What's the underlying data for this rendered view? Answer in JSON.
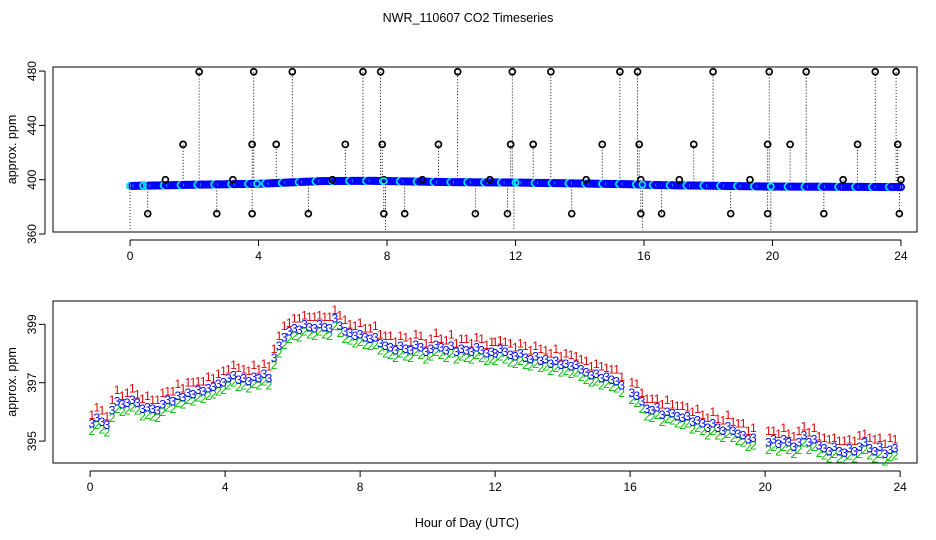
{
  "chart_data": [
    {
      "type": "scatter",
      "title": "NWR_110607  CO2 Timeseries",
      "xlabel": "",
      "ylabel": "approx. ppm",
      "xlim": [
        -2.4,
        24.5
      ],
      "ylim": [
        361.5,
        483
      ],
      "xticks": [
        0,
        4,
        8,
        12,
        16,
        20,
        24
      ],
      "yticks": [
        360,
        400,
        440,
        480
      ],
      "baseline": [
        [
          0.0,
          395.4
        ],
        [
          2.0,
          396.3
        ],
        [
          4.0,
          397.0
        ],
        [
          6.0,
          399.0
        ],
        [
          7.5,
          399.2
        ],
        [
          10.0,
          398.2
        ],
        [
          12.0,
          397.9
        ],
        [
          15.5,
          396.7
        ],
        [
          16.5,
          396.0
        ],
        [
          18.0,
          395.6
        ],
        [
          19.8,
          395.0
        ],
        [
          20.5,
          394.9
        ],
        [
          24.0,
          394.6
        ]
      ],
      "series": [
        {
          "name": "blue trace",
          "color": "#0000ff"
        },
        {
          "name": "cyan markers",
          "color": "#00e5ee"
        }
      ],
      "spikes_high": [
        2.15,
        3.85,
        5.05,
        7.25,
        7.8,
        10.2,
        11.9,
        13.1,
        15.25,
        15.8,
        18.15,
        19.9,
        21.05,
        23.2,
        23.85
      ],
      "spikes_mid": [
        1.65,
        3.8,
        4.55,
        6.7,
        7.85,
        9.6,
        11.85,
        12.55,
        14.7,
        15.85,
        17.55,
        19.85,
        20.55,
        22.65,
        23.9
      ],
      "spikes_low": [
        0.55,
        2.7,
        3.8,
        5.55,
        7.9,
        8.55,
        10.75,
        11.75,
        13.75,
        15.9,
        16.55,
        18.7,
        19.85,
        21.6,
        23.95
      ],
      "spikes_near": [
        1.1,
        3.2,
        6.3,
        7.9,
        9.1,
        11.2,
        14.2,
        15.9,
        17.1,
        19.3,
        22.2,
        24.0
      ]
    },
    {
      "type": "scatter",
      "title": "",
      "xlabel": "Hour of Day (UTC)",
      "ylabel": "approx. ppm",
      "xlim": [
        -1.1,
        24.5
      ],
      "ylim": [
        394.25,
        399.8
      ],
      "xticks": [
        0,
        4,
        8,
        12,
        16,
        20,
        24
      ],
      "yticks": [
        395,
        397,
        399
      ],
      "series": [
        {
          "name": "1",
          "symbol": "1",
          "color": "#dd0000",
          "offset": 0.35
        },
        {
          "name": "2",
          "symbol": "2",
          "color": "#00bb00",
          "offset": -0.2
        },
        {
          "name": "3",
          "symbol": "3",
          "color": "#0000ff",
          "offset": 0.05
        }
      ],
      "points": [
        [
          0.05,
          395.55
        ],
        [
          0.2,
          395.75
        ],
        [
          0.35,
          395.6
        ],
        [
          0.5,
          395.5
        ],
        [
          0.65,
          396.0
        ],
        [
          0.8,
          396.3
        ],
        [
          0.95,
          396.2
        ],
        [
          1.1,
          396.25
        ],
        [
          1.25,
          396.35
        ],
        [
          1.4,
          396.25
        ],
        [
          1.55,
          396.05
        ],
        [
          1.7,
          396.1
        ],
        [
          1.85,
          396.05
        ],
        [
          2.0,
          396.0
        ],
        [
          2.15,
          396.2
        ],
        [
          2.3,
          396.35
        ],
        [
          2.45,
          396.3
        ],
        [
          2.6,
          396.5
        ],
        [
          2.75,
          396.45
        ],
        [
          2.9,
          396.6
        ],
        [
          3.05,
          396.55
        ],
        [
          3.2,
          396.7
        ],
        [
          3.35,
          396.65
        ],
        [
          3.5,
          396.75
        ],
        [
          3.65,
          396.8
        ],
        [
          3.8,
          396.9
        ],
        [
          3.95,
          396.95
        ],
        [
          4.1,
          397.1
        ],
        [
          4.25,
          397.2
        ],
        [
          4.4,
          397.05
        ],
        [
          4.55,
          397.1
        ],
        [
          4.7,
          397.0
        ],
        [
          4.85,
          397.15
        ],
        [
          5.0,
          397.1
        ],
        [
          5.15,
          397.25
        ],
        [
          5.3,
          397.1
        ],
        [
          5.45,
          397.8
        ],
        [
          5.6,
          398.2
        ],
        [
          5.75,
          398.5
        ],
        [
          5.9,
          398.7
        ],
        [
          6.05,
          398.8
        ],
        [
          6.2,
          398.75
        ],
        [
          6.35,
          398.95
        ],
        [
          6.5,
          398.85
        ],
        [
          6.65,
          398.8
        ],
        [
          6.8,
          398.95
        ],
        [
          6.95,
          398.85
        ],
        [
          7.1,
          398.8
        ],
        [
          7.25,
          399.15
        ],
        [
          7.4,
          398.9
        ],
        [
          7.55,
          398.7
        ],
        [
          7.7,
          398.65
        ],
        [
          7.85,
          398.55
        ],
        [
          8.0,
          398.6
        ],
        [
          8.15,
          398.5
        ],
        [
          8.3,
          398.45
        ],
        [
          8.45,
          398.5
        ],
        [
          8.6,
          398.3
        ],
        [
          8.75,
          398.2
        ],
        [
          8.9,
          398.15
        ],
        [
          9.05,
          398.05
        ],
        [
          9.2,
          398.2
        ],
        [
          9.35,
          398.1
        ],
        [
          9.5,
          398.05
        ],
        [
          9.65,
          398.25
        ],
        [
          9.8,
          398.15
        ],
        [
          9.95,
          398.0
        ],
        [
          10.1,
          398.1
        ],
        [
          10.25,
          398.25
        ],
        [
          10.4,
          398.15
        ],
        [
          10.55,
          398.05
        ],
        [
          10.7,
          398.2
        ],
        [
          10.85,
          398.0
        ],
        [
          11.0,
          398.1
        ],
        [
          11.15,
          398.05
        ],
        [
          11.3,
          398.0
        ],
        [
          11.45,
          398.15
        ],
        [
          11.6,
          398.05
        ],
        [
          11.75,
          397.95
        ],
        [
          11.9,
          398.0
        ],
        [
          12.0,
          397.95
        ],
        [
          12.15,
          398.1
        ],
        [
          12.3,
          398.0
        ],
        [
          12.45,
          397.9
        ],
        [
          12.6,
          397.85
        ],
        [
          12.75,
          397.95
        ],
        [
          12.9,
          397.8
        ],
        [
          13.05,
          397.75
        ],
        [
          13.2,
          397.85
        ],
        [
          13.35,
          397.7
        ],
        [
          13.5,
          397.75
        ],
        [
          13.65,
          397.6
        ],
        [
          13.8,
          397.7
        ],
        [
          13.95,
          397.55
        ],
        [
          14.1,
          397.6
        ],
        [
          14.25,
          397.5
        ],
        [
          14.4,
          397.55
        ],
        [
          14.55,
          397.4
        ],
        [
          14.7,
          397.3
        ],
        [
          14.85,
          397.2
        ],
        [
          15.0,
          397.25
        ],
        [
          15.15,
          397.1
        ],
        [
          15.3,
          397.15
        ],
        [
          15.45,
          397.05
        ],
        [
          15.6,
          397.0
        ],
        [
          15.75,
          396.85
        ],
        [
          16.05,
          396.6
        ],
        [
          16.2,
          396.5
        ],
        [
          16.35,
          396.3
        ],
        [
          16.5,
          396.05
        ],
        [
          16.65,
          396.0
        ],
        [
          16.8,
          396.1
        ],
        [
          16.95,
          395.85
        ],
        [
          17.1,
          395.95
        ],
        [
          17.25,
          395.9
        ],
        [
          17.4,
          395.8
        ],
        [
          17.55,
          395.75
        ],
        [
          17.7,
          395.8
        ],
        [
          17.85,
          395.6
        ],
        [
          18.0,
          395.65
        ],
        [
          18.15,
          395.55
        ],
        [
          18.3,
          395.4
        ],
        [
          18.45,
          395.55
        ],
        [
          18.6,
          395.4
        ],
        [
          18.75,
          395.3
        ],
        [
          18.9,
          395.45
        ],
        [
          19.05,
          395.3
        ],
        [
          19.2,
          395.2
        ],
        [
          19.35,
          395.15
        ],
        [
          19.5,
          395.0
        ],
        [
          19.65,
          395.05
        ],
        [
          20.1,
          394.9
        ],
        [
          20.25,
          395.0
        ],
        [
          20.4,
          394.85
        ],
        [
          20.55,
          395.0
        ],
        [
          20.7,
          394.9
        ],
        [
          20.85,
          394.75
        ],
        [
          21.0,
          394.9
        ],
        [
          21.15,
          395.15
        ],
        [
          21.3,
          394.9
        ],
        [
          21.45,
          395.0
        ],
        [
          21.6,
          394.8
        ],
        [
          21.75,
          394.7
        ],
        [
          21.9,
          394.6
        ],
        [
          22.05,
          394.75
        ],
        [
          22.2,
          394.6
        ],
        [
          22.35,
          394.55
        ],
        [
          22.5,
          394.7
        ],
        [
          22.65,
          394.6
        ],
        [
          22.8,
          394.75
        ],
        [
          22.95,
          394.9
        ],
        [
          23.1,
          394.7
        ],
        [
          23.25,
          394.6
        ],
        [
          23.4,
          394.75
        ],
        [
          23.55,
          394.5
        ],
        [
          23.7,
          394.65
        ],
        [
          23.85,
          394.7
        ]
      ]
    }
  ]
}
